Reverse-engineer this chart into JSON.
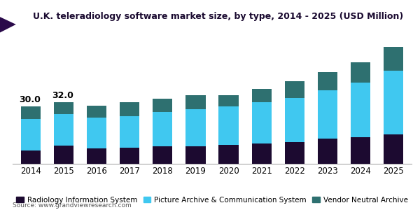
{
  "years": [
    2014,
    2015,
    2016,
    2017,
    2018,
    2019,
    2020,
    2021,
    2022,
    2023,
    2024,
    2025
  ],
  "ris": [
    7.0,
    9.5,
    8.0,
    8.5,
    9.0,
    9.0,
    10.0,
    10.5,
    11.5,
    13.0,
    14.0,
    15.5
  ],
  "pacs": [
    16.5,
    16.5,
    16.0,
    16.5,
    18.0,
    19.5,
    20.0,
    21.5,
    23.0,
    25.5,
    28.5,
    33.0
  ],
  "vna": [
    6.5,
    6.0,
    6.5,
    7.0,
    7.0,
    7.5,
    6.0,
    7.0,
    8.5,
    9.5,
    10.5,
    12.5
  ],
  "labels_2014_2015": [
    "30.0",
    "32.0"
  ],
  "ris_color": "#1c0a30",
  "pacs_color": "#40c8f0",
  "vna_color": "#2e7070",
  "title": "U.K. teleradiology software market size, by type, 2014 - 2025 (USD Million)",
  "title_color": "#1a0a30",
  "legend_ris": "Radiology Information System",
  "legend_pacs": "Picture Archive & Communication System",
  "legend_vna": "Vendor Neutral Archive",
  "source": "Source: www.grandviewresearch.com",
  "bg_color": "#ffffff",
  "header_purple": "#5c2d7e",
  "header_line": "#7b3fa0",
  "bar_width": 0.6,
  "ylim": [
    0,
    68
  ],
  "title_fontsize": 9.0,
  "legend_fontsize": 7.5,
  "tick_fontsize": 8.5,
  "annot_fontsize": 9.0
}
